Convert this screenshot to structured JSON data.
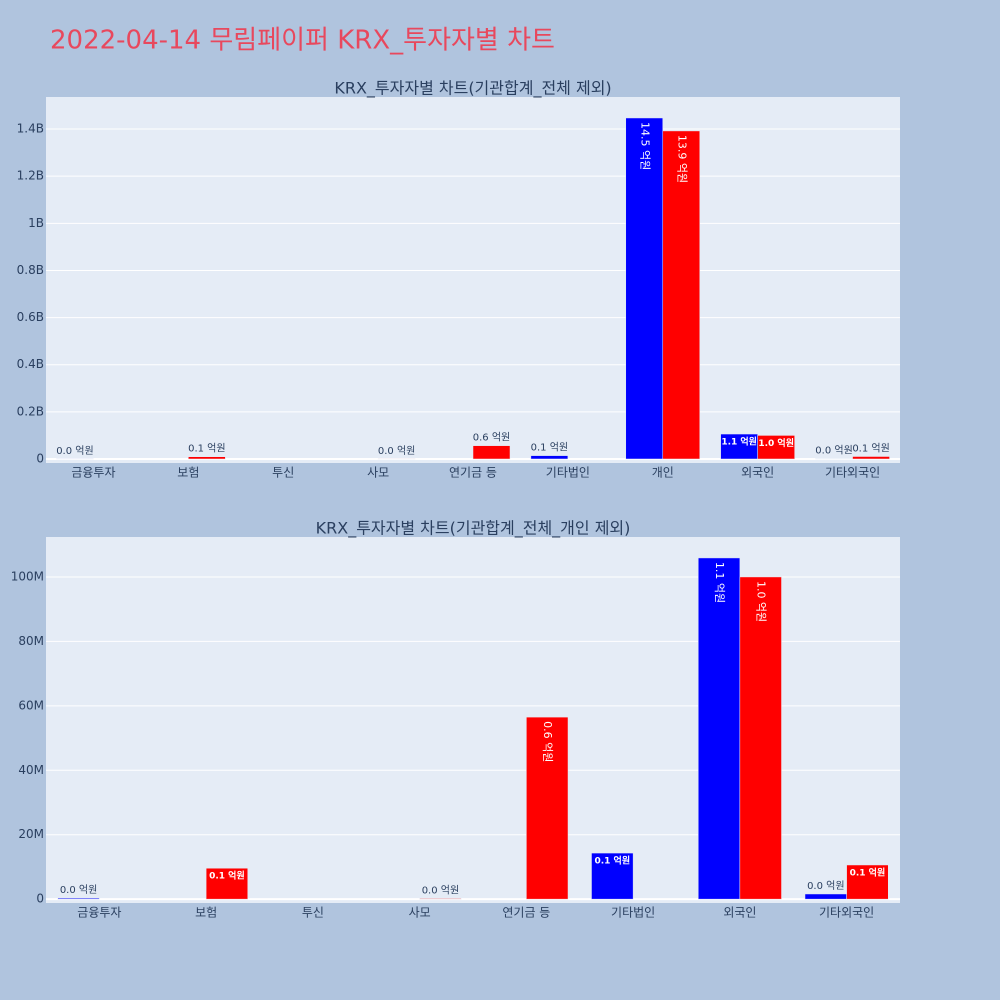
{
  "title": "2022-04-14 무림페이퍼 KRX_투자자별 차트",
  "chart_data": [
    {
      "type": "bar",
      "title": "KRX_투자자별 차트(기관합계_전체 제외)",
      "categories": [
        "금융투자",
        "보험",
        "투신",
        "사모",
        "연기금 등",
        "기타법인",
        "개인",
        "외국인",
        "기타외국인"
      ],
      "series": [
        {
          "color": "#0000ff",
          "values": [
            300000,
            null,
            null,
            null,
            null,
            14300000,
            1447000000,
            105900000,
            1600000
          ],
          "value_labels": [
            "0.0 억원",
            null,
            null,
            null,
            null,
            "0.1 억원",
            "14.5 억원",
            "1.1 억원",
            "0.0 억원"
          ]
        },
        {
          "color": "#ff0000",
          "values": [
            null,
            9600000,
            null,
            200000,
            56500000,
            null,
            1392000000,
            100000000,
            10600000
          ],
          "value_labels": [
            null,
            "0.1 억원",
            null,
            "0.0 억원",
            "0.6 억원",
            null,
            "13.9 억원",
            "1.0 억원",
            "0.1 억원"
          ]
        }
      ],
      "ylim": [
        -17000000,
        1536000000
      ],
      "yticks": [
        0,
        {
          "value": 200000000,
          "label": "0.2B"
        },
        {
          "value": 400000000,
          "label": "0.4B"
        },
        {
          "value": 600000000,
          "label": "0.6B"
        },
        {
          "value": 800000000,
          "label": "0.8B"
        },
        {
          "value": 1000000000,
          "label": "1B"
        },
        {
          "value": 1200000000,
          "label": "1.2B"
        },
        {
          "value": 1400000000,
          "label": "1.4B"
        }
      ],
      "grid": true
    },
    {
      "type": "bar",
      "title": "KRX_투자자별 차트(기관합계_전체_개인 제외)",
      "categories": [
        "금융투자",
        "보험",
        "투신",
        "사모",
        "연기금 등",
        "기타법인",
        "외국인",
        "기타외국인"
      ],
      "series": [
        {
          "color": "#0000ff",
          "values": [
            300000,
            null,
            null,
            null,
            null,
            14300000,
            105900000,
            1600000
          ],
          "value_labels": [
            "0.0 억원",
            null,
            null,
            null,
            null,
            "0.1 억원",
            "1.1 억원",
            "0.0 억원"
          ]
        },
        {
          "color": "#ff0000",
          "values": [
            null,
            9600000,
            null,
            200000,
            56500000,
            null,
            100000000,
            10600000
          ],
          "value_labels": [
            null,
            "0.1 억원",
            null,
            "0.0 억원",
            "0.6 억원",
            null,
            "1.0 억원",
            "0.1 억원"
          ]
        }
      ],
      "ylim": [
        -1200000,
        112400000
      ],
      "yticks": [
        0,
        {
          "value": 20000000,
          "label": "20M"
        },
        {
          "value": 40000000,
          "label": "40M"
        },
        {
          "value": 60000000,
          "label": "60M"
        },
        {
          "value": 80000000,
          "label": "80M"
        },
        {
          "value": 100000000,
          "label": "100M"
        }
      ],
      "grid": true
    }
  ]
}
